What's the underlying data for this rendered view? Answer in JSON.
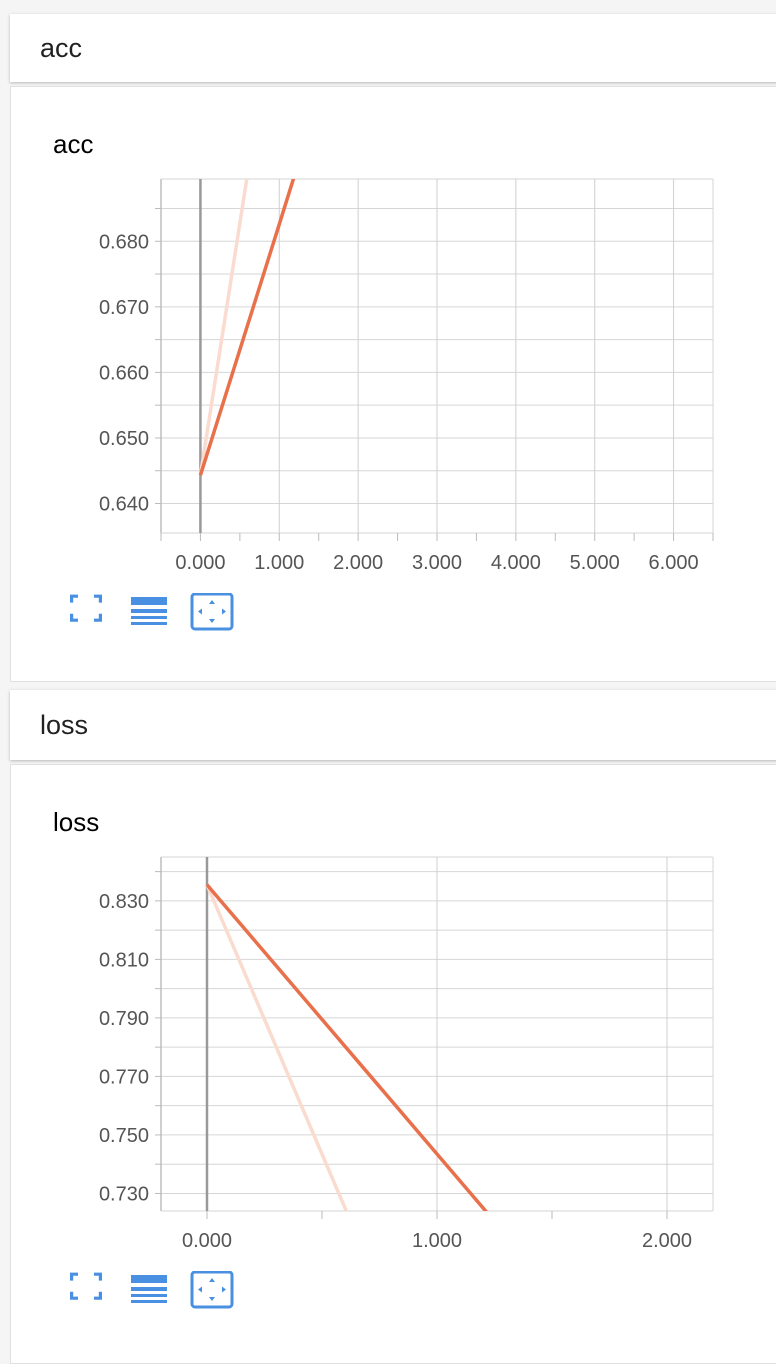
{
  "cards": [
    {
      "header": "acc",
      "chart_title": "acc"
    },
    {
      "header": "loss",
      "chart_title": "loss"
    }
  ],
  "toolbar": {
    "icons": [
      "fullscreen-icon",
      "toggle-y-log-icon",
      "fit-domain-icon"
    ]
  },
  "colors": {
    "series": "#e8704a",
    "series_raw": "#fadbcf",
    "accent": "#4a90e2"
  },
  "chart_data": [
    {
      "type": "line",
      "title": "acc",
      "xlabel": "",
      "ylabel": "",
      "xlim": [
        -0.5,
        6.5
      ],
      "ylim": [
        0.6355,
        0.6895
      ],
      "x_ticks": [
        "0.000",
        "1.000",
        "2.000",
        "3.000",
        "4.000",
        "5.000",
        "6.000"
      ],
      "y_ticks": [
        "0.640",
        "0.650",
        "0.660",
        "0.670",
        "0.680"
      ],
      "grid": true,
      "series": [
        {
          "x": [
            0,
            1,
            2
          ],
          "y": [
            0.6443,
            0.6826,
            0.7212
          ]
        },
        {
          "x": [
            0,
            1
          ],
          "y": [
            0.6443,
            0.7212
          ]
        }
      ]
    },
    {
      "type": "line",
      "title": "loss",
      "xlabel": "",
      "ylabel": "",
      "xlim": [
        -0.2,
        2.2
      ],
      "ylim": [
        0.724,
        0.845
      ],
      "x_ticks": [
        "0.000",
        "1.000",
        "2.000"
      ],
      "y_ticks": [
        "0.730",
        "0.750",
        "0.770",
        "0.790",
        "0.810",
        "0.830"
      ],
      "grid": true,
      "series": [
        {
          "x": [
            0,
            1,
            2
          ],
          "y": [
            0.8355,
            0.7435,
            0.6514
          ]
        },
        {
          "x": [
            0,
            1
          ],
          "y": [
            0.8355,
            0.6514
          ]
        }
      ]
    }
  ]
}
